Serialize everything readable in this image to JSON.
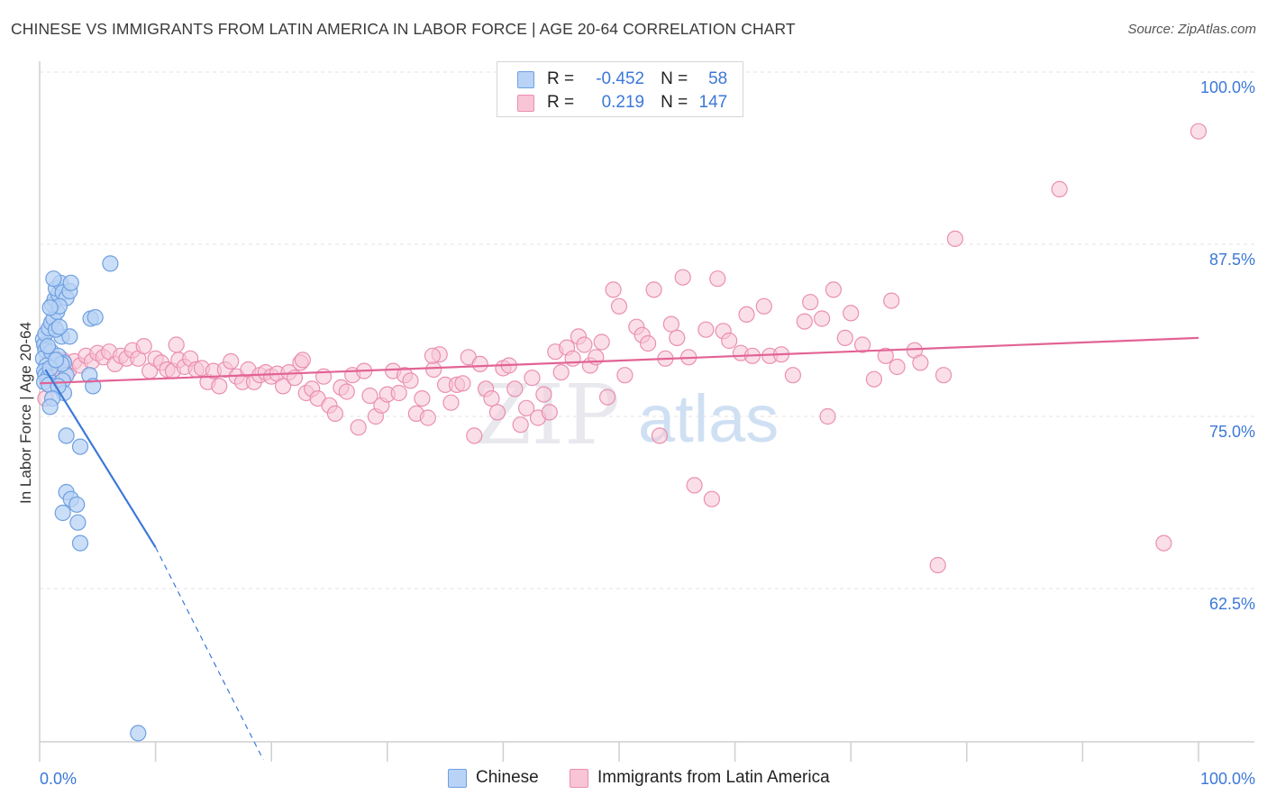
{
  "title": "CHINESE VS IMMIGRANTS FROM LATIN AMERICA IN LABOR FORCE | AGE 20-64 CORRELATION CHART",
  "source": "Source: ZipAtlas.com",
  "watermark": {
    "zip": "ZIP",
    "atlas": "atlas"
  },
  "legend": {
    "r_label": "R =",
    "n_label": "N =",
    "series": [
      {
        "name": "Chinese",
        "r": "-0.452",
        "n": "58",
        "fill": "#b8d3f5",
        "stroke": "#6f9fe0"
      },
      {
        "name": "Immigrants from Latin America",
        "r": "0.219",
        "n": "147",
        "fill": "#f8c5d6",
        "stroke": "#ea8fb1"
      }
    ]
  },
  "chart_data": {
    "type": "scatter",
    "title": "CHINESE VS IMMIGRANTS FROM LATIN AMERICA IN LABOR FORCE | AGE 20-64 CORRELATION CHART",
    "xlabel": "",
    "ylabel": "In Labor Force | Age 20-64",
    "xlim": [
      0,
      100
    ],
    "ylim": [
      50,
      101.5
    ],
    "x_tick_labels": [
      {
        "value": 0,
        "label": "0.0%"
      },
      {
        "value": 100,
        "label": "100.0%"
      }
    ],
    "y_tick_labels": [
      {
        "value": 100,
        "label": "100.0%"
      },
      {
        "value": 87.5,
        "label": "87.5%"
      },
      {
        "value": 75,
        "label": "75.0%"
      },
      {
        "value": 62.5,
        "label": "62.5%"
      }
    ],
    "series": [
      {
        "name": "Chinese",
        "color": "#3c78d8",
        "fill": "#b8d3f5",
        "trend": {
          "x_start": 0.5,
          "y_start": 78.4,
          "x_end": 10,
          "y_end": 65.5,
          "x_dash_end": 19.3,
          "y_dash_end": 50
        },
        "points": [
          [
            0.3,
            80.6
          ],
          [
            0.4,
            80.2
          ],
          [
            0.5,
            79.8
          ],
          [
            0.3,
            79.2
          ],
          [
            0.6,
            78.7
          ],
          [
            0.4,
            78.3
          ],
          [
            0.5,
            78.0
          ],
          [
            0.7,
            77.8
          ],
          [
            0.4,
            77.5
          ],
          [
            0.8,
            77.3
          ],
          [
            0.5,
            81.0
          ],
          [
            0.8,
            81.4
          ],
          [
            1.0,
            81.8
          ],
          [
            1.2,
            82.1
          ],
          [
            1.5,
            82.6
          ],
          [
            1.1,
            83.1
          ],
          [
            1.3,
            83.5
          ],
          [
            1.6,
            83.9
          ],
          [
            1.4,
            84.3
          ],
          [
            1.8,
            84.7
          ],
          [
            1.2,
            85.0
          ],
          [
            2.0,
            84.0
          ],
          [
            2.3,
            83.6
          ],
          [
            1.7,
            83.0
          ],
          [
            2.6,
            84.1
          ],
          [
            2.7,
            84.7
          ],
          [
            1.0,
            79.7
          ],
          [
            1.6,
            79.4
          ],
          [
            2.1,
            78.9
          ],
          [
            2.3,
            78.0
          ],
          [
            2.0,
            77.6
          ],
          [
            2.1,
            76.7
          ],
          [
            1.6,
            77.2
          ],
          [
            1.1,
            76.3
          ],
          [
            0.9,
            75.7
          ],
          [
            4.3,
            78.0
          ],
          [
            4.4,
            82.1
          ],
          [
            4.8,
            82.2
          ],
          [
            6.1,
            86.1
          ],
          [
            4.6,
            77.2
          ],
          [
            2.3,
            73.6
          ],
          [
            3.5,
            72.8
          ],
          [
            2.3,
            69.5
          ],
          [
            2.7,
            69.0
          ],
          [
            3.2,
            68.6
          ],
          [
            2.0,
            68.0
          ],
          [
            3.3,
            67.3
          ],
          [
            3.5,
            65.8
          ],
          [
            8.5,
            52.0
          ],
          [
            1.9,
            80.8
          ],
          [
            0.9,
            82.9
          ],
          [
            1.4,
            81.3
          ],
          [
            0.7,
            80.1
          ],
          [
            1.9,
            78.8
          ],
          [
            0.9,
            78.5
          ],
          [
            1.4,
            79.1
          ],
          [
            2.6,
            80.8
          ],
          [
            1.7,
            81.5
          ]
        ]
      },
      {
        "name": "Immigrants from Latin America",
        "color": "#e26394",
        "fill": "#f8c5d6",
        "trend": {
          "x_start": 0,
          "y_start": 77.4,
          "x_end": 100,
          "y_end": 80.7
        },
        "points": [
          [
            0.5,
            76.3
          ],
          [
            1.0,
            77.8
          ],
          [
            1.5,
            78.5
          ],
          [
            2.0,
            79.1
          ],
          [
            2.5,
            78.3
          ],
          [
            3.0,
            79.0
          ],
          [
            3.5,
            78.7
          ],
          [
            4.0,
            79.4
          ],
          [
            4.5,
            79.0
          ],
          [
            5.0,
            79.6
          ],
          [
            5.5,
            79.3
          ],
          [
            6.0,
            79.7
          ],
          [
            6.5,
            78.8
          ],
          [
            7.0,
            79.4
          ],
          [
            7.5,
            79.2
          ],
          [
            8.0,
            79.8
          ],
          [
            8.5,
            79.2
          ],
          [
            9.0,
            80.1
          ],
          [
            9.5,
            78.3
          ],
          [
            10.0,
            79.2
          ],
          [
            10.5,
            78.9
          ],
          [
            11.0,
            78.4
          ],
          [
            11.5,
            78.3
          ],
          [
            12.0,
            79.1
          ],
          [
            12.5,
            78.6
          ],
          [
            13.0,
            79.2
          ],
          [
            13.5,
            78.4
          ],
          [
            14.0,
            78.5
          ],
          [
            14.5,
            77.5
          ],
          [
            15.0,
            78.3
          ],
          [
            15.5,
            77.2
          ],
          [
            16.0,
            78.4
          ],
          [
            16.5,
            79.0
          ],
          [
            17.0,
            77.9
          ],
          [
            17.5,
            77.5
          ],
          [
            18.0,
            78.4
          ],
          [
            18.5,
            77.5
          ],
          [
            19.0,
            78.0
          ],
          [
            19.5,
            78.2
          ],
          [
            20.0,
            77.9
          ],
          [
            20.5,
            78.1
          ],
          [
            21.0,
            77.2
          ],
          [
            21.5,
            78.2
          ],
          [
            22.0,
            77.8
          ],
          [
            22.5,
            78.9
          ],
          [
            23.0,
            76.7
          ],
          [
            23.5,
            77.0
          ],
          [
            24.0,
            76.3
          ],
          [
            24.5,
            77.9
          ],
          [
            25.0,
            75.8
          ],
          [
            25.5,
            75.2
          ],
          [
            26.0,
            77.1
          ],
          [
            26.5,
            76.8
          ],
          [
            27.0,
            78.0
          ],
          [
            27.5,
            74.2
          ],
          [
            28.0,
            78.3
          ],
          [
            28.5,
            76.5
          ],
          [
            29.0,
            75.0
          ],
          [
            29.5,
            75.8
          ],
          [
            30.0,
            76.6
          ],
          [
            30.5,
            78.3
          ],
          [
            31.0,
            76.7
          ],
          [
            31.5,
            78.0
          ],
          [
            32.0,
            77.6
          ],
          [
            32.5,
            75.2
          ],
          [
            33.0,
            76.3
          ],
          [
            33.5,
            74.9
          ],
          [
            34.0,
            78.4
          ],
          [
            34.5,
            79.5
          ],
          [
            35.0,
            77.3
          ],
          [
            35.5,
            76.0
          ],
          [
            36.0,
            77.3
          ],
          [
            36.5,
            77.4
          ],
          [
            37.0,
            79.3
          ],
          [
            37.5,
            73.6
          ],
          [
            38.0,
            78.8
          ],
          [
            38.5,
            77.0
          ],
          [
            39.0,
            76.3
          ],
          [
            39.5,
            75.3
          ],
          [
            40.0,
            78.5
          ],
          [
            40.5,
            78.7
          ],
          [
            41.0,
            77.0
          ],
          [
            41.5,
            74.4
          ],
          [
            42.0,
            75.6
          ],
          [
            42.5,
            77.8
          ],
          [
            43.0,
            74.9
          ],
          [
            43.5,
            76.6
          ],
          [
            44.0,
            75.3
          ],
          [
            44.5,
            79.7
          ],
          [
            45.0,
            78.2
          ],
          [
            45.5,
            80.0
          ],
          [
            46.0,
            79.2
          ],
          [
            46.5,
            80.8
          ],
          [
            47.0,
            80.2
          ],
          [
            47.5,
            78.7
          ],
          [
            48.0,
            79.3
          ],
          [
            48.5,
            80.4
          ],
          [
            49.0,
            76.4
          ],
          [
            49.5,
            84.2
          ],
          [
            50.0,
            83.0
          ],
          [
            50.5,
            78.0
          ],
          [
            51.5,
            81.5
          ],
          [
            52.0,
            80.9
          ],
          [
            52.5,
            80.3
          ],
          [
            53.0,
            84.2
          ],
          [
            53.5,
            73.6
          ],
          [
            54.0,
            79.2
          ],
          [
            54.5,
            81.7
          ],
          [
            55.0,
            80.7
          ],
          [
            55.5,
            85.1
          ],
          [
            56.0,
            79.3
          ],
          [
            56.5,
            70.0
          ],
          [
            57.5,
            81.3
          ],
          [
            58.0,
            69.0
          ],
          [
            58.5,
            85.0
          ],
          [
            59.0,
            81.2
          ],
          [
            59.5,
            80.5
          ],
          [
            60.5,
            79.6
          ],
          [
            61.0,
            82.4
          ],
          [
            61.5,
            79.4
          ],
          [
            62.5,
            83.0
          ],
          [
            63.0,
            79.4
          ],
          [
            64.0,
            79.5
          ],
          [
            65.0,
            78.0
          ],
          [
            66.0,
            81.9
          ],
          [
            66.5,
            83.3
          ],
          [
            67.5,
            82.1
          ],
          [
            68.0,
            75.0
          ],
          [
            68.5,
            84.2
          ],
          [
            69.5,
            80.7
          ],
          [
            70.0,
            82.5
          ],
          [
            71.0,
            80.2
          ],
          [
            72.0,
            77.7
          ],
          [
            73.0,
            79.4
          ],
          [
            73.5,
            83.4
          ],
          [
            74.0,
            78.6
          ],
          [
            75.5,
            79.8
          ],
          [
            76.0,
            78.9
          ],
          [
            77.5,
            64.2
          ],
          [
            78.0,
            78.0
          ],
          [
            79.0,
            87.9
          ],
          [
            88.0,
            91.5
          ],
          [
            97.0,
            65.8
          ],
          [
            100.0,
            95.7
          ],
          [
            11.8,
            80.2
          ],
          [
            22.7,
            79.1
          ],
          [
            33.9,
            79.4
          ]
        ]
      }
    ]
  }
}
